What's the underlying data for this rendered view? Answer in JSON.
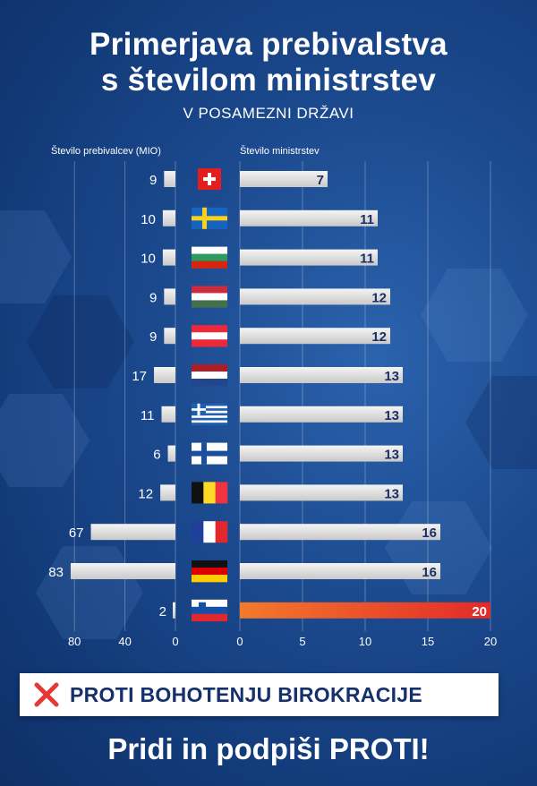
{
  "title_line1": "Primerjava prebivalstva",
  "title_line2": "s številom ministrstev",
  "subtitle": "V POSAMEZNI DRŽAVI",
  "left_axis_label": "Število prebivalcev (MIO)",
  "right_axis_label": "Število ministrstev",
  "banner_text": "PROTI BOHOTENJU BIROKRACIJE",
  "call_to_action": "Pridi in podpiši PROTI!",
  "colors": {
    "bar_gray": "#e3e3e3",
    "highlight_start": "#f47a2a",
    "highlight_end": "#e22a2a",
    "value_text": "#1a2f66",
    "cross": "#e53935"
  },
  "chart_data": {
    "type": "bar",
    "categories": [
      "Switzerland",
      "Sweden",
      "Bulgaria",
      "Hungary",
      "Austria",
      "Netherlands",
      "Greece",
      "Finland",
      "Belgium",
      "France",
      "Germany",
      "Slovenia"
    ],
    "series": [
      {
        "name": "Število prebivalcev (MIO)",
        "values": [
          9,
          10,
          10,
          9,
          9,
          17,
          11,
          6,
          12,
          67,
          83,
          2
        ]
      },
      {
        "name": "Število ministrstev",
        "values": [
          7,
          11,
          11,
          12,
          12,
          13,
          13,
          13,
          13,
          16,
          16,
          20
        ]
      }
    ],
    "highlight": "Slovenia",
    "population_ticks": [
      "80",
      "40",
      "0"
    ],
    "population_xlim": [
      0,
      90
    ],
    "ministries_ticks": [
      "0",
      "5",
      "10",
      "15",
      "20"
    ],
    "ministries_xlim": [
      0,
      20
    ]
  }
}
